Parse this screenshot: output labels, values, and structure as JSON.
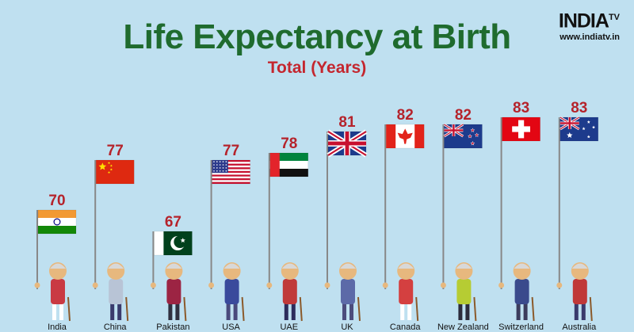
{
  "title": "Life Expectancy at Birth",
  "subtitle": "Total (Years)",
  "logo": {
    "main": "INDIA",
    "tv": "TV",
    "url": "www.indiatv.in"
  },
  "colors": {
    "background": "#bfe0f0",
    "title": "#1f6b2e",
    "subtitle": "#c4262e",
    "value": "#b5232b"
  },
  "chart_data": {
    "type": "bar",
    "categories": [
      "India",
      "China",
      "Pakistan",
      "USA",
      "UAE",
      "UK",
      "Canada",
      "New Zealand",
      "Switzerland",
      "Australia"
    ],
    "values": [
      70,
      77,
      67,
      77,
      78,
      81,
      82,
      82,
      83,
      83
    ],
    "title": "Life Expectancy at Birth",
    "subtitle": "Total (Years)",
    "ylim": [
      60,
      85
    ],
    "flags": [
      "india-flag",
      "china-flag",
      "pakistan-flag",
      "usa-flag",
      "uae-flag",
      "uk-flag",
      "canada-flag",
      "new-zealand-flag",
      "switzerland-flag",
      "australia-flag"
    ],
    "grid": false,
    "legend": "none"
  }
}
